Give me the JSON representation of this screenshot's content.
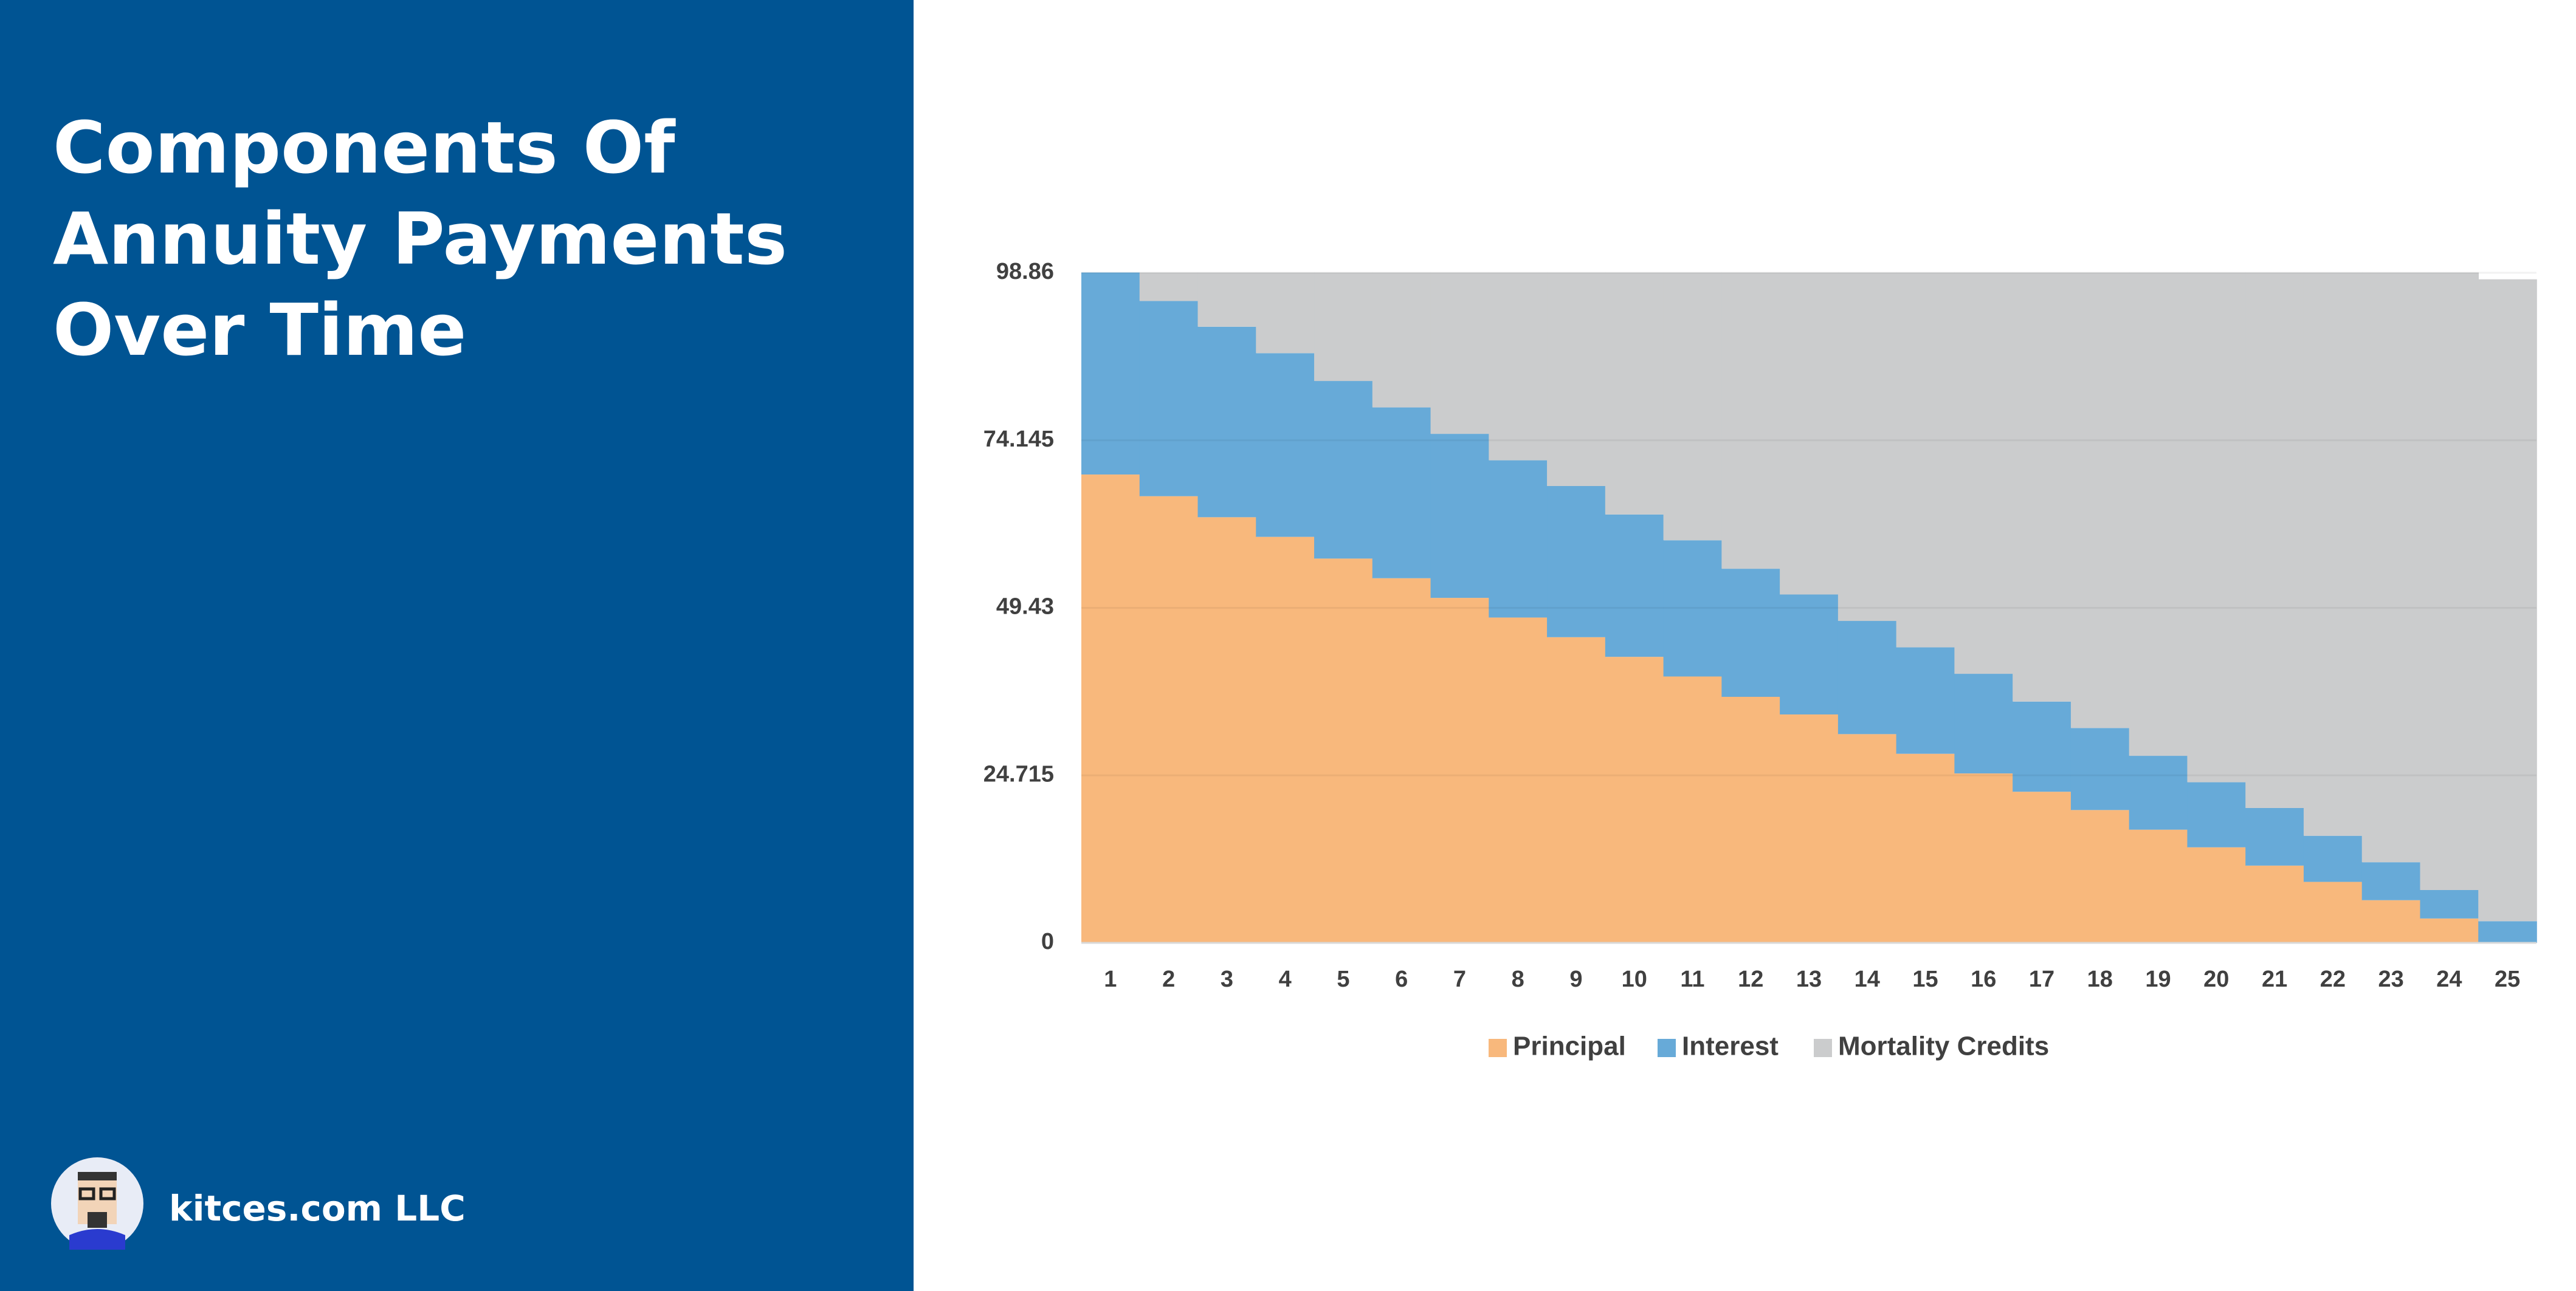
{
  "brand": "kitces.com LLC",
  "chart_data": {
    "type": "bar",
    "stacked": true,
    "title": "Components Of Annuity Payments Over Time",
    "categories": [
      "1",
      "2",
      "3",
      "4",
      "5",
      "6",
      "7",
      "8",
      "9",
      "10",
      "11",
      "12",
      "13",
      "14",
      "15",
      "16",
      "17",
      "18",
      "19",
      "20",
      "21",
      "22",
      "23",
      "24",
      "25"
    ],
    "series": [
      {
        "name": "Principal",
        "color": "#f8b87c",
        "values": [
          69.1,
          65.9,
          62.8,
          59.9,
          56.7,
          53.8,
          50.9,
          48.0,
          45.1,
          42.2,
          39.3,
          36.3,
          33.7,
          30.8,
          27.9,
          25.0,
          22.3,
          19.6,
          16.7,
          14.1,
          11.4,
          9.0,
          6.3,
          3.6,
          0
        ]
      },
      {
        "name": "Interest",
        "color": "#67aad8",
        "values": [
          29.8,
          28.8,
          28.1,
          27.1,
          26.2,
          25.2,
          24.2,
          23.2,
          22.3,
          21.0,
          20.1,
          18.9,
          17.7,
          16.7,
          15.7,
          14.7,
          13.3,
          12.1,
          10.9,
          9.6,
          8.5,
          6.8,
          5.6,
          4.2,
          3.2
        ]
      },
      {
        "name": "Mortality Credits",
        "color": "#cbcccd",
        "values": [
          0,
          4.2,
          8.0,
          11.9,
          16.0,
          19.9,
          23.8,
          27.7,
          31.5,
          35.7,
          39.5,
          43.7,
          47.5,
          51.4,
          55.3,
          59.2,
          63.3,
          67.2,
          71.3,
          75.2,
          79.0,
          83.1,
          87.0,
          91.1,
          94.7
        ]
      }
    ],
    "ylim": [
      0,
      98.86
    ],
    "yticks": [
      0,
      24.715,
      49.43,
      74.145,
      98.86
    ],
    "grid": true,
    "legend": "bottom"
  }
}
